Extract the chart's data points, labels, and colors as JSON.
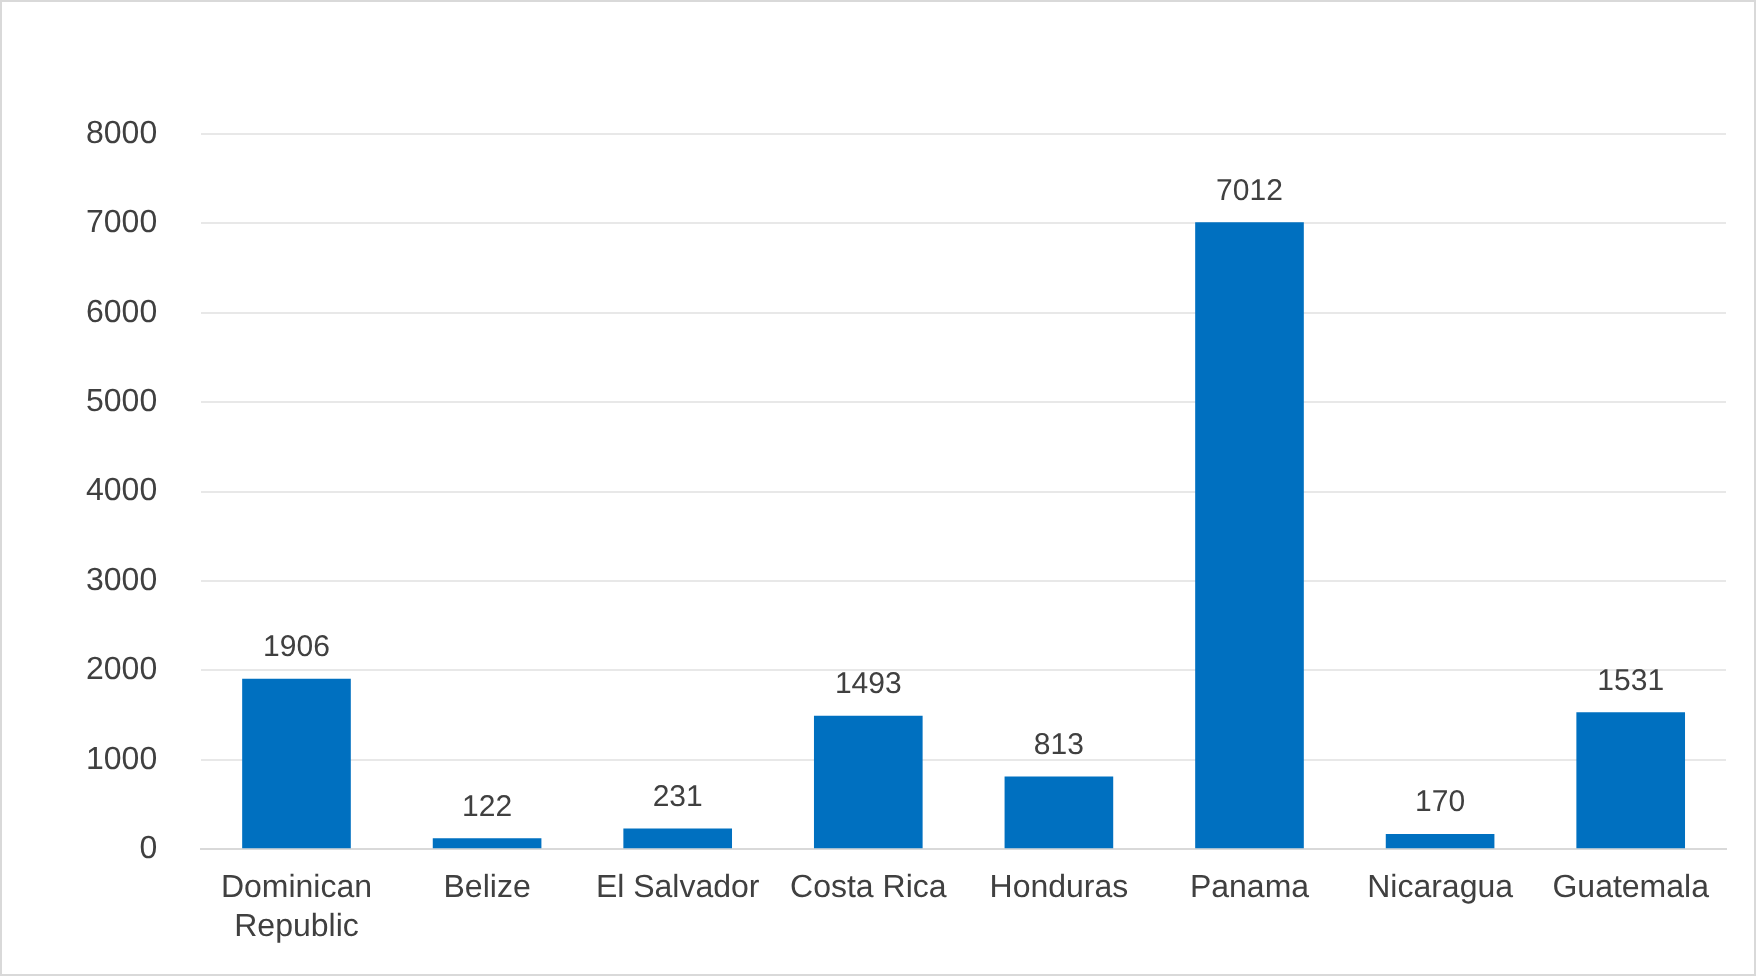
{
  "chart_data": {
    "type": "bar",
    "categories": [
      "Dominican Republic",
      "Belize",
      "El Salvador",
      "Costa Rica",
      "Honduras",
      "Panama",
      "Nicaragua",
      "Guatemala"
    ],
    "values": [
      1906,
      122,
      231,
      1493,
      813,
      7012,
      170,
      1531
    ],
    "color": "#0070c0",
    "ylim": [
      0,
      8000
    ],
    "yticks": [
      0,
      1000,
      2000,
      3000,
      4000,
      5000,
      6000,
      7000,
      8000
    ],
    "grid": "y",
    "data_labels": true,
    "legend": false
  }
}
